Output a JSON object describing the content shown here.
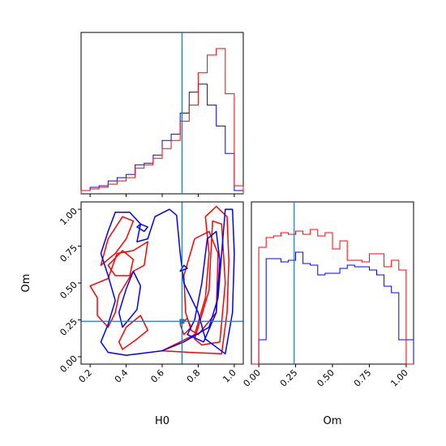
{
  "chart_data": {
    "type": "corner",
    "truth": {
      "H0": 0.71,
      "Om": 0.24
    },
    "truth_color": "#1f77b4",
    "series_colors": {
      "red": "#ff0000",
      "blue": "#0000ff"
    },
    "params": [
      "H0",
      "Om"
    ],
    "xlabel_H0": "H0",
    "ylabel_Om": "Om",
    "xlabel_Om": "Om",
    "h0_range": [
      0.15,
      1.05
    ],
    "om_range": [
      -0.05,
      1.05
    ],
    "h0_ticks": [
      "0.2",
      "0.4",
      "0.6",
      "0.8",
      "1.0"
    ],
    "h0_tick_values": [
      0.2,
      0.4,
      0.6,
      0.8,
      1.0
    ],
    "om_ticks": [
      "0.00",
      "0.25",
      "0.50",
      "0.75",
      "1.00"
    ],
    "om_tick_values": [
      0.0,
      0.25,
      0.5,
      0.75,
      1.0
    ],
    "h0_hist_bins": [
      0.15,
      0.2,
      0.25,
      0.3,
      0.35,
      0.4,
      0.45,
      0.5,
      0.55,
      0.6,
      0.65,
      0.7,
      0.75,
      0.8,
      0.85,
      0.9,
      0.95,
      1.0,
      1.05
    ],
    "h0_hist_red": [
      0.02,
      0.03,
      0.04,
      0.06,
      0.08,
      0.1,
      0.16,
      0.18,
      0.22,
      0.28,
      0.33,
      0.45,
      0.55,
      0.75,
      0.86,
      0.9,
      0.62,
      0.05
    ],
    "h0_hist_blue": [
      0.02,
      0.04,
      0.05,
      0.08,
      0.1,
      0.12,
      0.18,
      0.19,
      0.24,
      0.33,
      0.37,
      0.5,
      0.63,
      0.68,
      0.55,
      0.42,
      0.25,
      0.02
    ],
    "om_hist_bins": [
      -0.05,
      0.0,
      0.05,
      0.1,
      0.15,
      0.2,
      0.25,
      0.3,
      0.35,
      0.4,
      0.45,
      0.5,
      0.55,
      0.6,
      0.65,
      0.7,
      0.75,
      0.8,
      0.85,
      0.9,
      0.95,
      1.0,
      1.05
    ],
    "om_hist_red": [
      0.0,
      0.72,
      0.78,
      0.79,
      0.81,
      0.8,
      0.82,
      0.8,
      0.83,
      0.79,
      0.81,
      0.71,
      0.76,
      0.64,
      0.64,
      0.63,
      0.68,
      0.68,
      0.6,
      0.64,
      0.58,
      0.0
    ],
    "om_hist_blue": [
      0.0,
      0.15,
      0.65,
      0.65,
      0.63,
      0.64,
      0.69,
      0.62,
      0.61,
      0.55,
      0.56,
      0.56,
      0.59,
      0.61,
      0.6,
      0.6,
      0.58,
      0.55,
      0.48,
      0.44,
      0.15,
      0.15
    ],
    "contours_red": [
      [
        [
          0.93,
          0.02
        ],
        [
          0.96,
          0.3
        ],
        [
          0.97,
          0.65
        ],
        [
          0.96,
          0.95
        ],
        [
          0.9,
          1.02
        ],
        [
          0.84,
          0.95
        ],
        [
          0.86,
          0.7
        ],
        [
          0.84,
          0.4
        ],
        [
          0.78,
          0.15
        ],
        [
          0.7,
          0.1
        ],
        [
          0.6,
          0.04
        ],
        [
          0.75,
          0.03
        ],
        [
          0.93,
          0.02
        ]
      ],
      [
        [
          0.82,
          0.08
        ],
        [
          0.92,
          0.1
        ],
        [
          0.95,
          0.5
        ],
        [
          0.93,
          0.9
        ],
        [
          0.88,
          0.92
        ],
        [
          0.87,
          0.7
        ],
        [
          0.86,
          0.45
        ],
        [
          0.8,
          0.2
        ],
        [
          0.78,
          0.12
        ],
        [
          0.82,
          0.08
        ]
      ],
      [
        [
          0.8,
          0.15
        ],
        [
          0.9,
          0.3
        ],
        [
          0.91,
          0.7
        ],
        [
          0.86,
          0.85
        ],
        [
          0.78,
          0.8
        ],
        [
          0.72,
          0.55
        ],
        [
          0.73,
          0.3
        ],
        [
          0.76,
          0.18
        ],
        [
          0.8,
          0.15
        ]
      ],
      [
        [
          0.2,
          0.48
        ],
        [
          0.3,
          0.53
        ],
        [
          0.35,
          0.7
        ],
        [
          0.44,
          0.72
        ],
        [
          0.52,
          0.78
        ],
        [
          0.5,
          0.62
        ],
        [
          0.44,
          0.58
        ],
        [
          0.4,
          0.5
        ],
        [
          0.36,
          0.42
        ],
        [
          0.34,
          0.3
        ],
        [
          0.3,
          0.2
        ],
        [
          0.24,
          0.28
        ],
        [
          0.24,
          0.4
        ],
        [
          0.2,
          0.48
        ]
      ],
      [
        [
          0.38,
          0.05
        ],
        [
          0.46,
          0.12
        ],
        [
          0.52,
          0.18
        ],
        [
          0.48,
          0.28
        ],
        [
          0.4,
          0.2
        ],
        [
          0.36,
          0.1
        ],
        [
          0.38,
          0.05
        ]
      ],
      [
        [
          0.26,
          0.62
        ],
        [
          0.3,
          0.8
        ],
        [
          0.38,
          0.95
        ],
        [
          0.44,
          0.92
        ],
        [
          0.4,
          0.8
        ],
        [
          0.34,
          0.7
        ],
        [
          0.26,
          0.62
        ]
      ],
      [
        [
          0.3,
          0.62
        ],
        [
          0.38,
          0.72
        ],
        [
          0.44,
          0.66
        ],
        [
          0.42,
          0.55
        ],
        [
          0.34,
          0.55
        ],
        [
          0.3,
          0.62
        ]
      ],
      [
        [
          0.72,
          0.15
        ],
        [
          0.76,
          0.2
        ],
        [
          0.74,
          0.26
        ],
        [
          0.7,
          0.22
        ],
        [
          0.72,
          0.15
        ]
      ]
    ],
    "contours_blue": [
      [
        [
          0.95,
          0.02
        ],
        [
          0.99,
          0.3
        ],
        [
          1.0,
          0.7
        ],
        [
          0.99,
          1.0
        ],
        [
          0.95,
          1.0
        ],
        [
          0.93,
          0.7
        ],
        [
          0.91,
          0.4
        ],
        [
          0.86,
          0.2
        ],
        [
          0.72,
          0.1
        ],
        [
          0.6,
          0.04
        ],
        [
          0.4,
          0.01
        ],
        [
          0.3,
          0.03
        ],
        [
          0.26,
          0.1
        ],
        [
          0.3,
          0.22
        ],
        [
          0.34,
          0.38
        ],
        [
          0.3,
          0.55
        ],
        [
          0.26,
          0.7
        ],
        [
          0.3,
          0.85
        ],
        [
          0.34,
          0.98
        ],
        [
          0.42,
          0.98
        ],
        [
          0.48,
          0.9
        ],
        [
          0.46,
          0.78
        ],
        [
          0.52,
          0.8
        ],
        [
          0.56,
          0.95
        ],
        [
          0.64,
          1.0
        ],
        [
          0.68,
          0.96
        ],
        [
          0.7,
          0.7
        ],
        [
          0.72,
          0.5
        ],
        [
          0.8,
          0.3
        ],
        [
          0.84,
          0.12
        ],
        [
          0.95,
          0.02
        ]
      ],
      [
        [
          0.83,
          0.1
        ],
        [
          0.9,
          0.3
        ],
        [
          0.92,
          0.65
        ],
        [
          0.9,
          0.85
        ],
        [
          0.85,
          0.8
        ],
        [
          0.82,
          0.5
        ],
        [
          0.78,
          0.25
        ],
        [
          0.74,
          0.15
        ],
        [
          0.83,
          0.1
        ]
      ],
      [
        [
          0.38,
          0.2
        ],
        [
          0.46,
          0.32
        ],
        [
          0.48,
          0.48
        ],
        [
          0.44,
          0.58
        ],
        [
          0.4,
          0.46
        ],
        [
          0.36,
          0.3
        ],
        [
          0.38,
          0.2
        ]
      ],
      [
        [
          0.46,
          0.88
        ],
        [
          0.5,
          0.85
        ],
        [
          0.52,
          0.88
        ],
        [
          0.48,
          0.9
        ],
        [
          0.46,
          0.88
        ]
      ],
      [
        [
          0.7,
          0.58
        ],
        [
          0.74,
          0.6
        ],
        [
          0.72,
          0.62
        ],
        [
          0.7,
          0.58
        ]
      ]
    ]
  }
}
